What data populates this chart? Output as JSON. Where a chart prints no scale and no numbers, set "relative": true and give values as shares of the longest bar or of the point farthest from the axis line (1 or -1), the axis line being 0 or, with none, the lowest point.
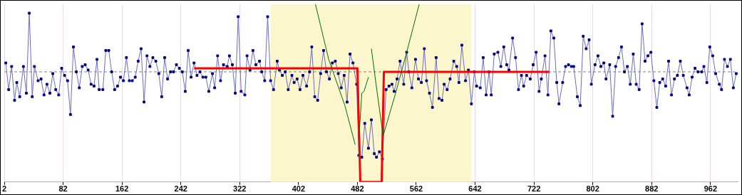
{
  "chart_data": {
    "type": "line",
    "relative": true,
    "legend": false,
    "grid": "x",
    "xlim": [
      2,
      999
    ],
    "xticks": [
      2,
      82,
      162,
      242,
      322,
      402,
      482,
      562,
      642,
      722,
      802,
      882,
      962
    ],
    "bands": [
      {
        "axis": "x",
        "from": 364,
        "to": 637,
        "color": "#fbf6cc"
      }
    ],
    "ref_lines": [
      {
        "axis": "y",
        "value": 0.62,
        "color": "#808080",
        "line_style": "dashed"
      }
    ],
    "series": [
      {
        "type": "line",
        "color": "#6b6bc4",
        "marker": "square",
        "x": [
          4,
          8,
          12,
          16,
          19,
          23,
          28,
          32,
          36,
          40,
          43,
          48,
          52,
          56,
          60,
          64,
          68,
          72,
          76,
          80,
          84,
          88,
          92,
          96,
          100,
          104,
          108,
          112,
          116,
          120,
          124,
          128,
          131,
          136,
          140,
          144,
          148,
          152,
          156,
          160,
          164,
          168,
          172,
          176,
          180,
          184,
          188,
          192,
          196,
          200,
          204,
          208,
          212,
          216,
          220,
          224,
          228,
          232,
          236,
          240,
          244,
          248,
          252,
          256,
          260,
          264,
          268,
          272,
          276,
          280,
          285,
          288,
          292,
          296,
          300,
          305,
          308,
          312,
          316,
          320,
          324,
          329,
          332,
          336,
          340,
          344,
          349,
          352,
          356,
          360,
          364,
          368,
          373,
          376,
          380,
          384,
          388,
          393,
          396,
          400,
          404,
          408,
          413,
          417,
          420,
          424,
          428,
          432,
          436,
          440,
          444,
          448,
          452,
          456,
          460,
          464,
          468,
          472,
          476,
          481,
          484,
          488,
          492,
          497,
          501,
          505,
          508,
          512,
          516,
          521,
          525,
          529,
          532,
          536,
          540,
          545,
          549,
          552,
          556,
          561,
          565,
          569,
          573,
          576,
          580,
          584,
          589,
          593,
          597,
          600,
          604,
          608,
          613,
          617,
          620,
          624,
          629,
          633,
          637,
          641,
          644,
          649,
          653,
          657,
          661,
          664,
          668,
          673,
          677,
          681,
          685,
          688,
          693,
          697,
          701,
          705,
          708,
          712,
          717,
          721,
          725,
          729,
          732,
          737,
          741,
          745,
          749,
          753,
          756,
          761,
          765,
          769,
          773,
          776,
          781,
          785,
          789,
          793,
          797,
          800,
          805,
          809,
          813,
          817,
          820,
          825,
          829,
          833,
          837,
          841,
          845,
          849,
          853,
          857,
          861,
          865,
          869,
          873,
          877,
          881,
          885,
          889,
          893,
          897,
          901,
          905,
          909,
          913,
          917,
          921,
          925,
          930,
          933,
          937,
          941,
          945,
          950,
          953,
          957,
          961,
          965,
          969,
          974,
          977,
          981,
          985,
          989,
          993,
          997
        ],
        "values": [
          0.67,
          0.52,
          0.65,
          0.46,
          0.56,
          0.48,
          0.65,
          0.5,
          0.95,
          0.48,
          0.65,
          0.57,
          0.58,
          0.49,
          0.55,
          0.5,
          0.61,
          0.52,
          0.49,
          0.64,
          0.6,
          0.57,
          0.38,
          0.76,
          0.62,
          0.53,
          0.65,
          0.66,
          0.63,
          0.55,
          0.54,
          0.69,
          0.52,
          0.52,
          0.74,
          0.74,
          0.62,
          0.52,
          0.54,
          0.59,
          0.57,
          0.7,
          0.57,
          0.57,
          0.59,
          0.68,
          0.75,
          0.45,
          0.71,
          0.65,
          0.7,
          0.68,
          0.61,
          0.48,
          0.7,
          0.58,
          0.62,
          0.62,
          0.66,
          0.64,
          0.62,
          0.51,
          0.74,
          0.59,
          0.67,
          0.6,
          0.62,
          0.59,
          0.59,
          0.51,
          0.61,
          0.53,
          0.71,
          0.57,
          0.66,
          0.65,
          0.71,
          0.66,
          0.5,
          0.93,
          0.51,
          0.49,
          0.71,
          0.63,
          0.74,
          0.66,
          0.68,
          0.62,
          0.57,
          0.93,
          0.57,
          0.52,
          0.68,
          0.63,
          0.6,
          0.62,
          0.52,
          0.6,
          0.56,
          0.58,
          0.52,
          0.6,
          0.54,
          0.62,
          0.76,
          0.48,
          0.46,
          0.61,
          0.74,
          0.62,
          0.58,
          0.67,
          0.68,
          0.61,
          0.53,
          0.6,
          0.45,
          0.72,
          0.67,
          0.55,
          0.15,
          0.14,
          0.33,
          0.19,
          0.35,
          0.16,
          0.14,
          0.17,
          0.13,
          0.52,
          0.54,
          0.55,
          0.51,
          0.58,
          0.68,
          0.55,
          0.73,
          0.62,
          0.53,
          0.69,
          0.58,
          0.56,
          0.75,
          0.57,
          0.5,
          0.42,
          0.7,
          0.47,
          0.46,
          0.55,
          0.52,
          0.58,
          0.68,
          0.65,
          0.56,
          0.77,
          0.57,
          0.63,
          0.44,
          0.62,
          0.54,
          0.53,
          0.7,
          0.49,
          0.62,
          0.49,
          0.72,
          0.73,
          0.65,
          0.76,
          0.66,
          0.63,
          0.81,
          0.7,
          0.52,
          0.6,
          0.54,
          0.6,
          0.58,
          0.66,
          0.73,
          0.51,
          0.58,
          0.71,
          0.49,
          0.85,
          0.81,
          0.56,
          0.44,
          0.56,
          0.65,
          0.66,
          0.65,
          0.65,
          0.48,
          0.43,
          0.82,
          0.75,
          0.8,
          0.55,
          0.66,
          0.71,
          0.65,
          0.67,
          0.58,
          0.66,
          0.37,
          0.65,
          0.7,
          0.76,
          0.62,
          0.65,
          0.55,
          0.72,
          0.55,
          0.52,
          0.89,
          0.68,
          0.71,
          0.73,
          0.57,
          0.42,
          0.56,
          0.58,
          0.54,
          0.68,
          0.49,
          0.58,
          0.6,
          0.68,
          0.6,
          0.53,
          0.49,
          0.59,
          0.64,
          0.62,
          0.62,
          0.65,
          0.56,
          0.76,
          0.71,
          0.61,
          0.55,
          0.52,
          0.69,
          0.65,
          0.69,
          0.53,
          0.61
        ]
      },
      {
        "type": "line",
        "color": "#ff0000",
        "marker": "none",
        "x": [
          260,
          482,
          486,
          515,
          518,
          743
        ],
        "values": [
          0.64,
          0.64,
          0,
          0,
          0.62,
          0.62
        ]
      },
      {
        "type": "line",
        "color": "#007000",
        "marker": "none",
        "x": [
          425,
          443,
          465,
          479
        ],
        "values": [
          1,
          0.69,
          0.43,
          0.21
        ]
      },
      {
        "type": "line",
        "color": "#007000",
        "marker": "none",
        "x": [
          484,
          488,
          491,
          497
        ],
        "values": [
          0.24,
          0.5,
          0.51,
          0.59
        ]
      },
      {
        "type": "line",
        "color": "#007000",
        "marker": "none",
        "x": [
          501,
          509,
          517,
          534,
          549,
          566
        ],
        "values": [
          0.75,
          0.5,
          0.26,
          0.5,
          0.73,
          1
        ]
      }
    ]
  }
}
